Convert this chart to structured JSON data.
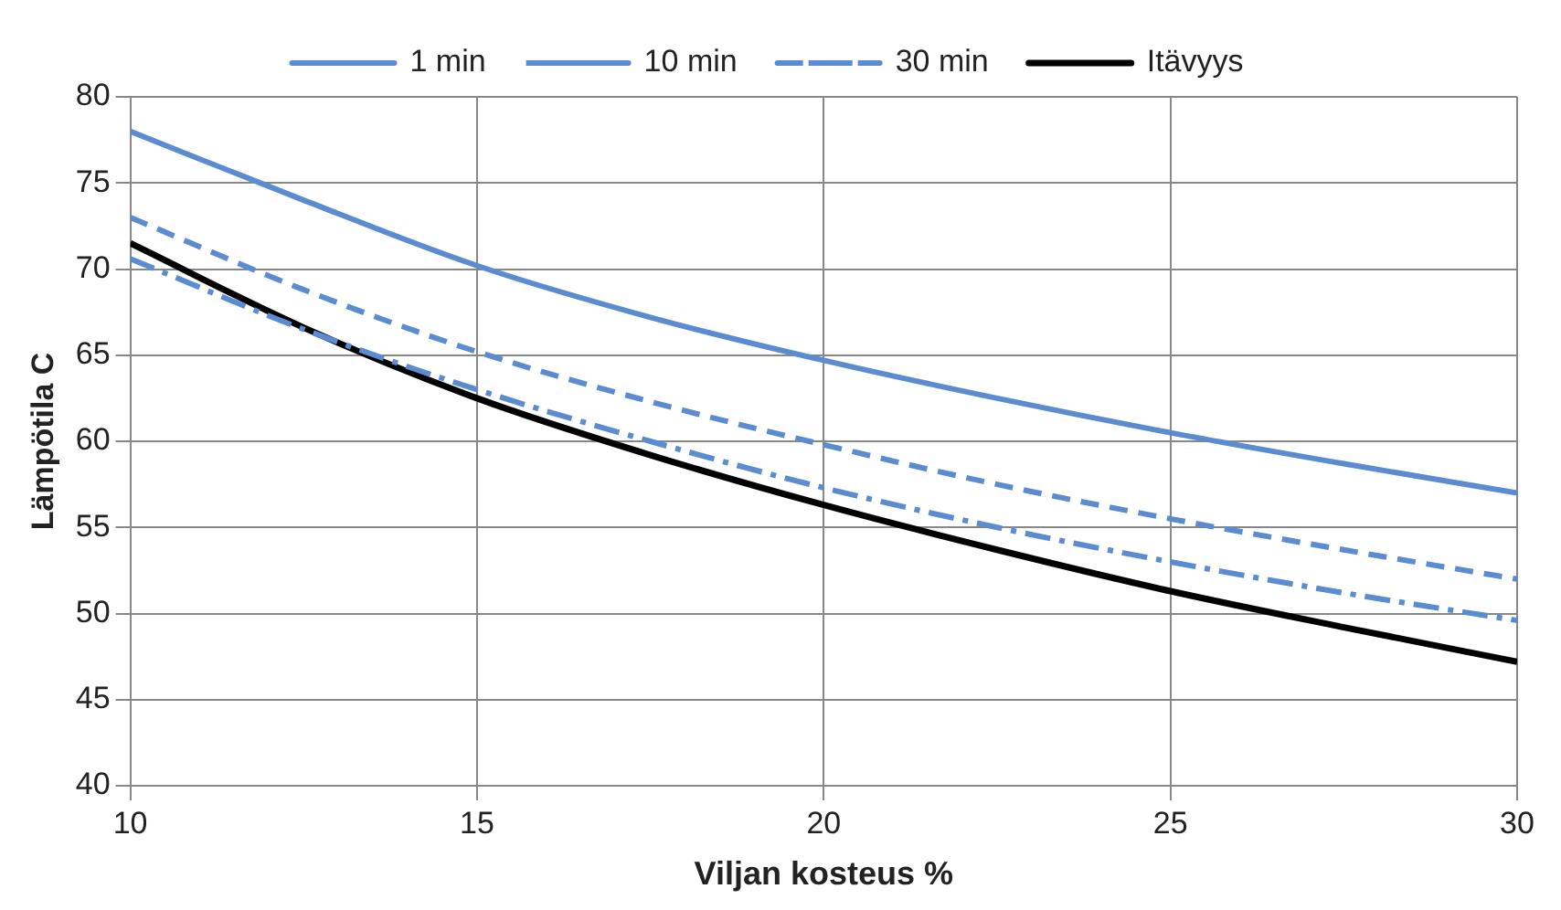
{
  "chart_data": {
    "type": "line",
    "xlabel": "Viljan kosteus %",
    "ylabel": "Lämpötila C",
    "x": [
      10,
      12.5,
      15,
      17.5,
      20,
      22.5,
      25,
      27.5,
      30
    ],
    "series": [
      {
        "name": "1 min",
        "color": "#5b8bd0",
        "line_style": "solid",
        "values": [
          78,
          74,
          70.2,
          67.2,
          64.7,
          62.5,
          60.5,
          58.7,
          57
        ]
      },
      {
        "name": "10 min",
        "color": "#5b8bd0",
        "line_style": "dashed",
        "values": [
          73,
          68.8,
          65.2,
          62.3,
          59.8,
          57.5,
          55.5,
          53.7,
          52
        ]
      },
      {
        "name": "30 min",
        "color": "#5b8bd0",
        "line_style": "dashdot",
        "values": [
          70.6,
          66.5,
          63,
          60,
          57.3,
          55,
          53,
          51.2,
          49.6
        ]
      },
      {
        "name": "Itävyys",
        "color": "#000000",
        "line_style": "solid",
        "values": [
          71.5,
          66.6,
          62.5,
          59.2,
          56.3,
          53.7,
          51.3,
          49.2,
          47.2
        ]
      }
    ],
    "xlim": [
      10,
      30
    ],
    "xticks": [
      10,
      15,
      20,
      25,
      30
    ],
    "ylim": [
      40,
      80
    ],
    "yticks": [
      40,
      45,
      50,
      55,
      60,
      65,
      70,
      75,
      80
    ],
    "grid": true,
    "legend": "top",
    "marker": "none"
  }
}
